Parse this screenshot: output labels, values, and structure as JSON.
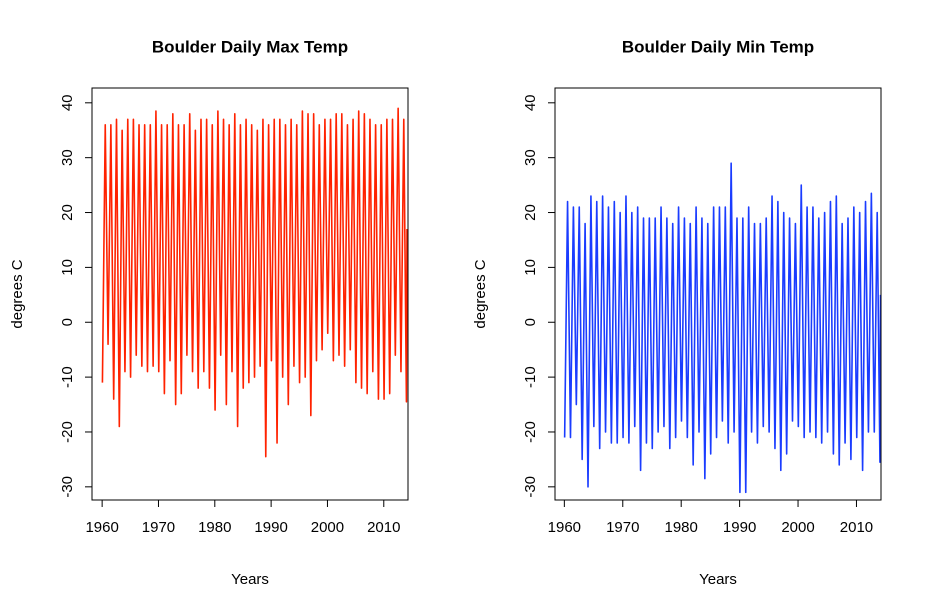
{
  "chart_data": [
    {
      "type": "line",
      "title": "Boulder Daily Max Temp",
      "xlabel": "Years",
      "ylabel": "degrees C",
      "color": "#ff2200",
      "xlim": [
        1958.2,
        2014.3
      ],
      "ylim": [
        -32.4,
        42.7
      ],
      "xticks": [
        1960,
        1970,
        1980,
        1990,
        2000,
        2010
      ],
      "yticks": [
        -30,
        -20,
        -10,
        0,
        10,
        20,
        30,
        40
      ],
      "x": [
        1960.05,
        1960.55,
        1961.05,
        1961.55,
        1962.05,
        1962.55,
        1963.05,
        1963.55,
        1964.05,
        1964.55,
        1965.05,
        1965.55,
        1966.05,
        1966.55,
        1967.05,
        1967.55,
        1968.05,
        1968.55,
        1969.05,
        1969.55,
        1970.05,
        1970.55,
        1971.05,
        1971.55,
        1972.05,
        1972.55,
        1973.05,
        1973.55,
        1974.05,
        1974.55,
        1975.05,
        1975.55,
        1976.05,
        1976.55,
        1977.05,
        1977.55,
        1978.05,
        1978.55,
        1979.05,
        1979.55,
        1980.05,
        1980.55,
        1981.05,
        1981.55,
        1982.05,
        1982.55,
        1983.05,
        1983.55,
        1984.05,
        1984.55,
        1985.05,
        1985.55,
        1986.05,
        1986.55,
        1987.05,
        1987.55,
        1988.05,
        1988.55,
        1989.05,
        1989.55,
        1990.05,
        1990.55,
        1991.05,
        1991.55,
        1992.05,
        1992.55,
        1993.05,
        1993.55,
        1994.05,
        1994.55,
        1995.05,
        1995.55,
        1996.05,
        1996.55,
        1997.05,
        1997.55,
        1998.05,
        1998.55,
        1999.05,
        1999.55,
        2000.05,
        2000.55,
        2001.05,
        2001.55,
        2002.05,
        2002.55,
        2003.05,
        2003.55,
        2004.05,
        2004.55,
        2005.05,
        2005.55,
        2006.05,
        2006.55,
        2007.05,
        2007.55,
        2008.05,
        2008.55,
        2009.05,
        2009.55,
        2010.05,
        2010.55,
        2011.05,
        2011.55,
        2012.05,
        2012.55,
        2013.05,
        2013.55,
        2014.02,
        2014.12
      ],
      "values": [
        -11,
        36,
        -4,
        36,
        -14,
        37,
        -19,
        35,
        -9,
        37,
        -10,
        37,
        -6,
        36,
        -8,
        36,
        -9,
        36,
        -8,
        38.5,
        -9,
        36,
        -13,
        36,
        -7,
        38,
        -15,
        36,
        -13,
        36,
        -6,
        38,
        -9,
        35,
        -12,
        37,
        -9,
        37,
        -12,
        36,
        -16,
        38.5,
        -6,
        37,
        -15,
        36,
        -9,
        38,
        -19,
        36,
        -12,
        37,
        -11,
        36,
        -10,
        35,
        -8,
        37,
        -24.5,
        36,
        -7,
        37,
        -22,
        37,
        -10,
        36,
        -15,
        37,
        -8,
        36,
        -11,
        38.5,
        -10,
        38,
        -17,
        38,
        -7,
        36,
        -5,
        37,
        -2,
        37,
        -7,
        38,
        -6,
        38,
        -8,
        36,
        -5,
        37,
        -11,
        38.5,
        -12,
        38,
        -13,
        37,
        -9,
        36,
        -14,
        36,
        -14,
        37,
        -13,
        37,
        -6,
        39,
        -9,
        37,
        -14.5,
        17
      ]
    },
    {
      "type": "line",
      "title": "Boulder Daily Min Temp",
      "xlabel": "Years",
      "ylabel": "degrees C",
      "color": "#1a3cff",
      "xlim": [
        1958.4,
        2014.2
      ],
      "ylim": [
        -32.4,
        42.7
      ],
      "xticks": [
        1960,
        1970,
        1980,
        1990,
        2000,
        2010
      ],
      "yticks": [
        -30,
        -20,
        -10,
        0,
        10,
        20,
        30,
        40
      ],
      "x": [
        1960.05,
        1960.55,
        1961.05,
        1961.55,
        1962.05,
        1962.55,
        1963.05,
        1963.55,
        1964.05,
        1964.55,
        1965.05,
        1965.55,
        1966.05,
        1966.55,
        1967.05,
        1967.55,
        1968.05,
        1968.55,
        1969.05,
        1969.55,
        1970.05,
        1970.55,
        1971.05,
        1971.55,
        1972.05,
        1972.55,
        1973.05,
        1973.55,
        1974.05,
        1974.55,
        1975.05,
        1975.55,
        1976.05,
        1976.55,
        1977.05,
        1977.55,
        1978.05,
        1978.55,
        1979.05,
        1979.55,
        1980.05,
        1980.55,
        1981.05,
        1981.55,
        1982.05,
        1982.55,
        1983.05,
        1983.55,
        1984.05,
        1984.55,
        1985.05,
        1985.55,
        1986.05,
        1986.55,
        1987.05,
        1987.55,
        1988.05,
        1988.55,
        1989.05,
        1989.55,
        1990.05,
        1990.55,
        1991.05,
        1991.55,
        1992.05,
        1992.55,
        1993.05,
        1993.55,
        1994.05,
        1994.55,
        1995.05,
        1995.55,
        1996.05,
        1996.55,
        1997.05,
        1997.55,
        1998.05,
        1998.55,
        1999.05,
        1999.55,
        2000.05,
        2000.55,
        2001.05,
        2001.55,
        2002.05,
        2002.55,
        2003.05,
        2003.55,
        2004.05,
        2004.55,
        2005.05,
        2005.55,
        2006.05,
        2006.55,
        2007.05,
        2007.55,
        2008.05,
        2008.55,
        2009.05,
        2009.55,
        2010.05,
        2010.55,
        2011.05,
        2011.55,
        2012.05,
        2012.55,
        2013.05,
        2013.55,
        2014.02,
        2014.12
      ],
      "values": [
        -21,
        22,
        -21,
        21,
        -15,
        21,
        -25,
        18,
        -30,
        23,
        -19,
        22,
        -23,
        23,
        -20,
        21,
        -22,
        22,
        -22,
        20,
        -21,
        23,
        -22,
        20,
        -19,
        21,
        -27,
        19,
        -22,
        19,
        -23,
        19,
        -20,
        21,
        -19,
        19,
        -23,
        18,
        -21,
        21,
        -18,
        19,
        -21,
        18,
        -26,
        21,
        -20,
        19,
        -28.5,
        18,
        -24,
        21,
        -21,
        21,
        -18,
        21,
        -22,
        29,
        -20,
        19,
        -31,
        19,
        -31,
        21,
        -20,
        18,
        -22,
        18,
        -19,
        19,
        -20,
        23,
        -23,
        22,
        -27,
        20,
        -24,
        19,
        -18,
        18,
        -19,
        25,
        -21,
        21,
        -20,
        21,
        -21,
        19,
        -22,
        20,
        -20,
        22,
        -24,
        23,
        -26,
        18,
        -22,
        19,
        -25,
        21,
        -21,
        20,
        -27,
        22,
        -20,
        23.5,
        -20,
        20,
        -25.5,
        5
      ]
    }
  ]
}
